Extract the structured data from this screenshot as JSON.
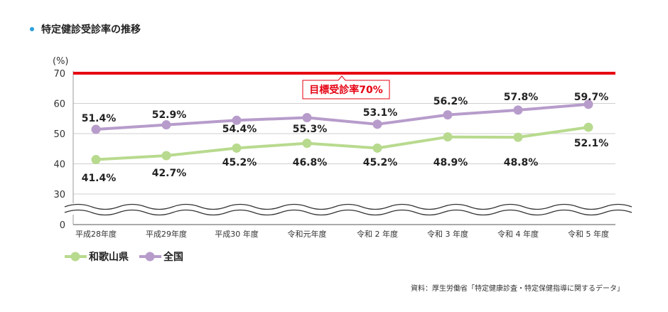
{
  "title": "特定健診受診率の推移",
  "source": "資料：厚生労働省「特定健康診査・特定保健指導に関するデータ」",
  "colors": {
    "wakayama": "#b8da8e",
    "national": "#b79ccb",
    "target": "#e60012",
    "dot": "#2aa0dc"
  },
  "chart_data": {
    "type": "line",
    "title": "特定健診受診率の推移",
    "ylabel": "(%)",
    "ylim": [
      0,
      70
    ],
    "axis_break": "between 0 and 30",
    "yticks": [
      "70",
      "60",
      "50",
      "40",
      "30",
      "0"
    ],
    "categories": [
      "平成28年度",
      "平成29年度",
      "平成30 年度",
      "令和元年度",
      "令和 2 年度",
      "令和 3 年度",
      "令和 4 年度",
      "令和 5 年度"
    ],
    "series": [
      {
        "name": "和歌山県",
        "values": [
          41.4,
          42.7,
          45.2,
          46.8,
          45.2,
          48.9,
          48.8,
          52.1
        ],
        "labels": [
          "41.4%",
          "42.7%",
          "45.2%",
          "46.8%",
          "45.2%",
          "48.9%",
          "48.8%",
          "52.1%"
        ]
      },
      {
        "name": "全国",
        "values": [
          51.4,
          52.9,
          54.4,
          55.3,
          53.1,
          56.2,
          57.8,
          59.7
        ],
        "labels": [
          "51.4%",
          "52.9%",
          "54.4%",
          "55.3%",
          "53.1%",
          "56.2%",
          "57.8%",
          "59.7%"
        ]
      }
    ],
    "target": {
      "value": 70,
      "label": "目標受診率70%"
    },
    "legend": {
      "placement": "bottom-left",
      "items": [
        "和歌山県",
        "全国"
      ]
    }
  }
}
